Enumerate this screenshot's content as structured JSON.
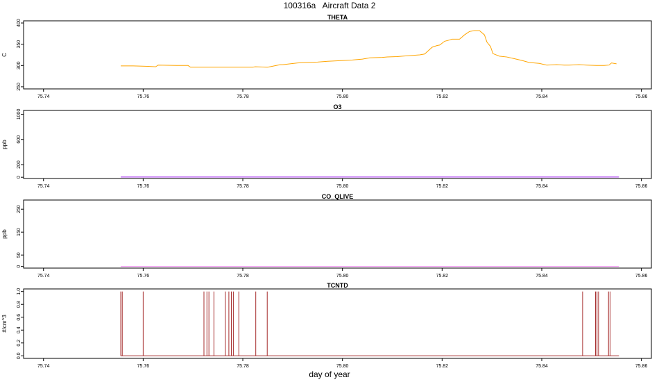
{
  "page": {
    "title": "100316a   Aircraft Data 2",
    "xlabel": "day of year"
  },
  "chart_data": [
    {
      "type": "line",
      "title": "THETA",
      "ylabel": "C",
      "color": "#ffa500",
      "xlim": [
        75.736,
        75.862
      ],
      "ylim": [
        245,
        405
      ],
      "xticks": [
        "75.74",
        "75.76",
        "75.78",
        "75.80",
        "75.82",
        "75.84",
        "75.86"
      ],
      "yticks": [
        "250",
        "300",
        "350",
        "400"
      ],
      "series": [
        {
          "x": [
            75.7555,
            75.758,
            75.761,
            75.7625,
            75.763,
            75.7675,
            75.769,
            75.7695,
            75.775,
            75.782,
            75.7825,
            75.7848,
            75.785,
            75.7875,
            75.788,
            75.791,
            75.7925,
            75.795,
            75.797,
            75.8005,
            75.802,
            75.804,
            75.8055,
            75.808,
            75.809,
            75.811,
            75.812,
            75.8155,
            75.816,
            75.8165,
            75.818,
            75.819,
            75.8195,
            75.8205,
            75.8215,
            75.822,
            75.8235,
            75.8245,
            75.8255,
            75.8265,
            75.8275,
            75.8285,
            75.829,
            75.8297,
            75.8302,
            75.8315,
            75.833,
            75.8345,
            75.836,
            75.8375,
            75.8385,
            75.8395,
            75.841,
            75.843,
            75.8445,
            75.8455,
            75.8475,
            75.849,
            75.851,
            75.8525,
            75.8535,
            75.854,
            75.855
          ],
          "y": [
            299,
            299,
            298,
            297,
            301,
            300,
            300,
            296,
            296,
            296,
            297,
            296,
            296,
            302,
            302,
            306,
            307,
            308,
            310,
            312,
            313,
            315,
            318,
            319,
            320,
            321,
            322,
            325,
            326,
            327,
            343,
            347,
            348,
            357,
            360,
            362,
            362,
            372,
            380,
            382,
            382,
            372,
            355,
            345,
            328,
            322,
            320,
            316,
            312,
            307,
            306,
            305,
            301,
            302,
            301,
            301,
            302,
            301,
            300,
            300,
            301,
            306,
            304
          ]
        }
      ]
    },
    {
      "type": "line",
      "title": "O3",
      "ylabel": "ppb",
      "color": "#a020f0",
      "xlim": [
        75.736,
        75.862
      ],
      "ylim": [
        -20,
        1060
      ],
      "xticks": [
        "75.74",
        "75.76",
        "75.78",
        "75.80",
        "75.82",
        "75.84",
        "75.86"
      ],
      "yticks": [
        "0",
        "200",
        "600",
        "1000"
      ],
      "series": [
        {
          "x": [
            75.7555,
            75.8555
          ],
          "y": [
            3,
            3
          ]
        }
      ]
    },
    {
      "type": "line",
      "title": "CO_QLIVE",
      "ylabel": "ppb",
      "color": "#ee82ee",
      "xlim": [
        75.736,
        75.862
      ],
      "ylim": [
        -7,
        290
      ],
      "xticks": [
        "75.74",
        "75.76",
        "75.78",
        "75.80",
        "75.82",
        "75.84",
        "75.86"
      ],
      "yticks": [
        "0",
        "50",
        "150",
        "250"
      ],
      "series": [
        {
          "x": [
            75.7555,
            75.8555
          ],
          "y": [
            0,
            0
          ]
        }
      ]
    },
    {
      "type": "line",
      "title": "TCNTD",
      "ylabel": "#/cm^3",
      "color": "#a52a2a",
      "xlim": [
        75.736,
        75.862
      ],
      "ylim": [
        -0.04,
        1.04
      ],
      "xticks": [
        "75.74",
        "75.76",
        "75.78",
        "75.80",
        "75.82",
        "75.84",
        "75.86"
      ],
      "yticks": [
        "0.0",
        "0.2",
        "0.4",
        "0.6",
        "0.8",
        "1.0"
      ],
      "baseline": {
        "x": [
          75.7555,
          75.8555
        ],
        "y": 0
      },
      "spikes": [
        75.7555,
        75.7558,
        75.76,
        75.7722,
        75.7728,
        75.7732,
        75.7742,
        75.7765,
        75.7772,
        75.7777,
        75.7781,
        75.7792,
        75.7826,
        75.7849,
        75.8482,
        75.8508,
        75.8511,
        75.8514,
        75.8534,
        75.8537
      ]
    }
  ]
}
